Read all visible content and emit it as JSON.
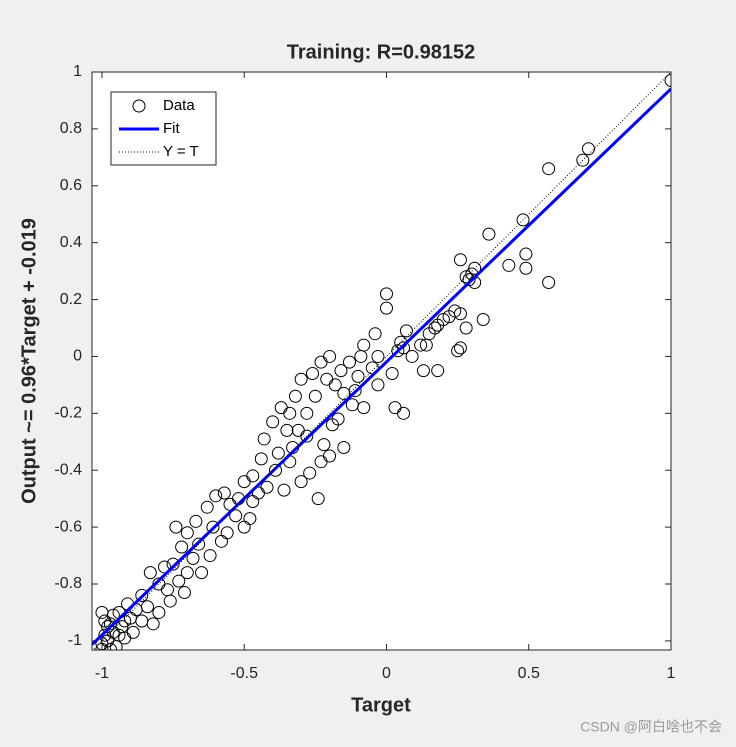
{
  "chart_data": {
    "type": "scatter",
    "title": "Training: R=0.98152",
    "x_label": "Target",
    "y_label": "Output ~= 0.96*Target + -0.019",
    "xlim": [
      -1.035,
      1
    ],
    "ylim": [
      -1.032,
      1
    ],
    "xticks": [
      -1,
      -0.5,
      0,
      0.5,
      1
    ],
    "yticks": [
      -1,
      -0.8,
      -0.6,
      -0.4,
      -0.2,
      0,
      0.2,
      0.4,
      0.6,
      0.8,
      1
    ],
    "legend": "upper left",
    "series": [
      {
        "name": "Data",
        "color": "#000000",
        "style": "markers",
        "x": [
          1,
          0.71,
          0.69,
          0.57,
          0.48,
          0.49,
          0.49,
          0.43,
          0.57,
          0.36,
          0.31,
          0.3,
          0.28,
          0.29,
          0.26,
          0.31,
          0.34,
          0.28,
          0.26,
          0.24,
          0.22,
          0.2,
          0.18,
          0.17,
          0.15,
          0.14,
          0.25,
          0.26,
          0.13,
          0,
          0,
          0.05,
          0.06,
          0.04,
          0.02,
          0.07,
          -0.04,
          -0.03,
          0.03,
          0.06,
          -0.08,
          -0.12,
          -0.05,
          -0.08,
          -0.09,
          -0.13,
          -0.16,
          -0.2,
          -0.23,
          -0.21,
          -0.26,
          -0.3,
          -0.32,
          -0.34,
          -0.37,
          -0.35,
          -0.4,
          -0.43,
          -0.38,
          -0.33,
          -0.28,
          -0.25,
          -0.18,
          -0.15,
          -0.19,
          -0.22,
          -0.23,
          -0.27,
          -0.24,
          -0.3,
          -0.36,
          -0.39,
          -0.44,
          -0.47,
          -0.5,
          -0.47,
          -0.52,
          -0.55,
          -0.57,
          -0.6,
          -0.53,
          -0.48,
          -0.5,
          -0.56,
          -0.61,
          -0.63,
          -0.66,
          -0.7,
          -0.68,
          -0.72,
          -0.75,
          -0.78,
          -0.8,
          -0.83,
          -0.77,
          -0.73,
          -0.7,
          -0.84,
          -0.86,
          -0.88,
          -0.9,
          -0.91,
          -0.93,
          -0.94,
          -0.96,
          -0.98,
          -0.99,
          -0.97,
          -1,
          -0.95,
          -0.92,
          -0.89,
          -0.86,
          -0.82,
          -0.8,
          -0.76,
          -0.71,
          -0.65,
          -0.62,
          -0.58,
          -0.67,
          -0.74,
          -0.1,
          -0.11,
          -0.03,
          0.18,
          0.12,
          0.09,
          -0.15,
          -0.28,
          -0.31,
          -0.42,
          -0.45,
          -0.34,
          -0.2,
          -0.17,
          -1,
          -0.98,
          -0.96,
          -0.99,
          -0.97,
          -1,
          -0.94,
          -0.92
        ],
        "values": [
          0.97,
          0.73,
          0.69,
          0.66,
          0.48,
          0.36,
          0.31,
          0.32,
          0.26,
          0.43,
          0.31,
          0.29,
          0.28,
          0.27,
          0.34,
          0.26,
          0.13,
          0.1,
          0.15,
          0.16,
          0.14,
          0.13,
          0.11,
          0.1,
          0.08,
          0.04,
          0.02,
          0.03,
          -0.05,
          0.22,
          0.17,
          0.05,
          0.03,
          0.02,
          -0.06,
          0.09,
          0.08,
          0,
          -0.18,
          -0.2,
          -0.18,
          -0.17,
          -0.04,
          0.04,
          0,
          -0.02,
          -0.05,
          0,
          -0.02,
          -0.08,
          -0.06,
          -0.08,
          -0.14,
          -0.2,
          -0.18,
          -0.26,
          -0.23,
          -0.29,
          -0.34,
          -0.32,
          -0.2,
          -0.14,
          -0.1,
          -0.13,
          -0.24,
          -0.31,
          -0.37,
          -0.41,
          -0.5,
          -0.44,
          -0.47,
          -0.4,
          -0.36,
          -0.42,
          -0.44,
          -0.51,
          -0.5,
          -0.52,
          -0.48,
          -0.49,
          -0.56,
          -0.57,
          -0.6,
          -0.62,
          -0.6,
          -0.53,
          -0.66,
          -0.62,
          -0.71,
          -0.67,
          -0.73,
          -0.74,
          -0.8,
          -0.76,
          -0.82,
          -0.79,
          -0.76,
          -0.88,
          -0.84,
          -0.89,
          -0.92,
          -0.87,
          -0.95,
          -0.9,
          -0.97,
          -1,
          -0.93,
          -1.03,
          -1.01,
          -1.02,
          -0.99,
          -0.97,
          -0.93,
          -0.94,
          -0.9,
          -0.86,
          -0.83,
          -0.76,
          -0.7,
          -0.65,
          -0.58,
          -0.6,
          -0.07,
          -0.12,
          -0.1,
          -0.05,
          0.04,
          0,
          -0.32,
          -0.28,
          -0.26,
          -0.46,
          -0.48,
          -0.37,
          -0.35,
          -0.22,
          -0.9,
          -0.95,
          -0.91,
          -0.98,
          -0.94,
          -1.03,
          -0.98,
          -0.93
        ]
      },
      {
        "name": "Fit",
        "color": "#0000ff",
        "style": "line",
        "x": [
          -1.035,
          1
        ],
        "values": [
          -1.013,
          0.941
        ]
      },
      {
        "name": "Y = T",
        "color": "#000000",
        "style": "dotted",
        "x": [
          -1.035,
          1
        ],
        "values": [
          -1.035,
          1
        ]
      }
    ],
    "watermark": "CSDN @阿白啥也不会"
  }
}
